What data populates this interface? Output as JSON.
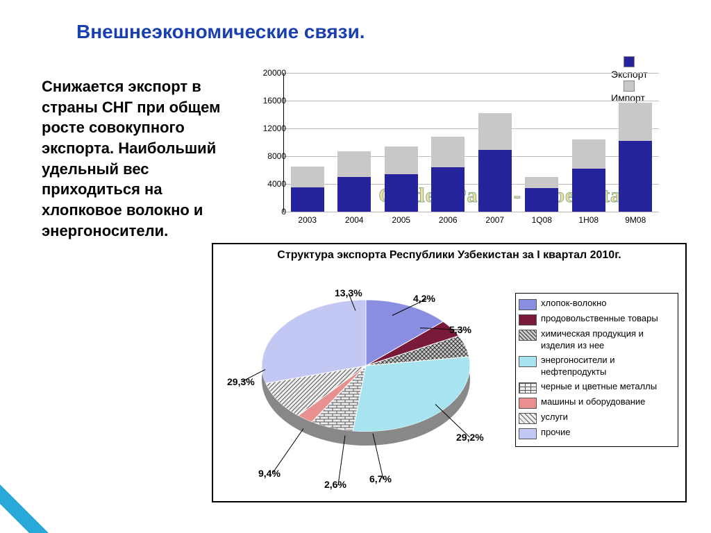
{
  "title": {
    "text": "Внешнеэкономические связи.",
    "color": "#1a3fb0",
    "fontsize": 28
  },
  "body_text": "Снижается экспорт в страны СНГ при общем росте совокупного экспорта. Наибольший удельный вес приходиться на хлопковое волокно и энергоносители.",
  "bar_chart": {
    "type": "stacked-bar",
    "legend": {
      "export": "Экспорт",
      "import": "Импорт"
    },
    "colors": {
      "export": "#26249c",
      "import": "#c8c8c8",
      "grid": "#bbbbbb",
      "axis": "#000000"
    },
    "ylim": [
      0,
      20000
    ],
    "ytick_step": 4000,
    "categories": [
      "2003",
      "2004",
      "2005",
      "2006",
      "2007",
      "1Q08",
      "1H08",
      "9M08"
    ],
    "export_values": [
      3500,
      5000,
      5400,
      6400,
      8900,
      3400,
      6200,
      10200
    ],
    "import_values": [
      3000,
      3700,
      4000,
      4400,
      5300,
      1600,
      4200,
      5500
    ],
    "watermark": "Golden Pages - Uzbekistan",
    "label_fontsize": 12
  },
  "pie_chart": {
    "type": "pie-3d",
    "title": "Структура экспорта Республики Узбекистан за I квартал 2010г.",
    "slices": [
      {
        "label": "хлопок-волокно",
        "value": 13.3,
        "text": "13,3%",
        "color": "#8a8ee0",
        "pattern": "none"
      },
      {
        "label": "продовольственные товары",
        "value": 4.2,
        "text": "4,2%",
        "color": "#7a1a3a",
        "pattern": "none"
      },
      {
        "label": "химическая продукция и изделия из нее",
        "value": 5.3,
        "text": "5,3%",
        "color": "#777777",
        "pattern": "cross"
      },
      {
        "label": "энергоносители и нефтепродукты",
        "value": 29.2,
        "text": "29,2%",
        "color": "#a7e4ef",
        "pattern": "none"
      },
      {
        "label": "черные и цветные металлы",
        "value": 6.7,
        "text": "6,7%",
        "color": "#eeeeee",
        "pattern": "brick"
      },
      {
        "label": "машины и оборудование",
        "value": 2.6,
        "text": "2,6%",
        "color": "#e89090",
        "pattern": "none"
      },
      {
        "label": "услуги",
        "value": 9.4,
        "text": "9,4%",
        "color": "#dddddd",
        "pattern": "diag"
      },
      {
        "label": "прочие",
        "value": 29.3,
        "text": "29,3%",
        "color": "#c3c7f4",
        "pattern": "none"
      }
    ],
    "legend_border": "#000000",
    "title_fontsize": 16,
    "label_fontsize": 14
  },
  "corner_colors": {
    "outer": "#2aa8d8",
    "inner": "#ffffff"
  }
}
